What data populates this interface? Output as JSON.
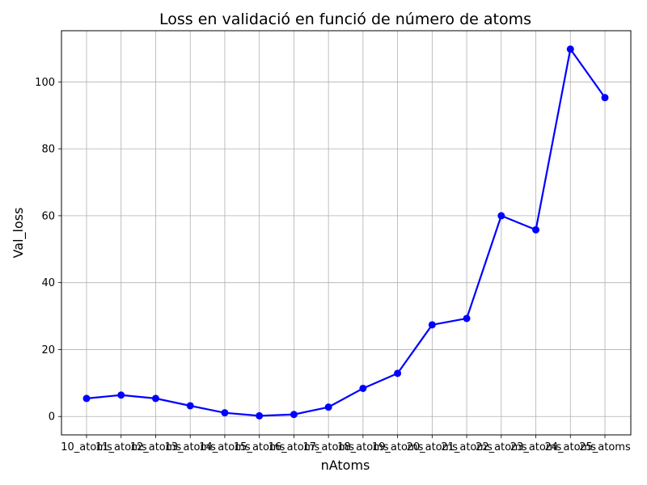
{
  "chart_data": {
    "type": "line",
    "title": "Loss en validació en funció de número de atoms",
    "xlabel": "nAtoms",
    "ylabel": "Val_loss",
    "categories": [
      "10_atoms",
      "11_atoms",
      "12_atoms",
      "13_atoms",
      "14_atoms",
      "15_atoms",
      "16_atoms",
      "17_atoms",
      "18_atoms",
      "19_atoms",
      "20_atoms",
      "21_atoms",
      "22_atoms",
      "23_atoms",
      "24_atoms",
      "25_atoms"
    ],
    "series": [
      {
        "values": [
          5.4,
          6.4,
          5.4,
          3.2,
          1.1,
          0.2,
          0.6,
          2.8,
          8.4,
          12.9,
          27.4,
          29.3,
          60.0,
          55.8,
          109.8,
          95.3
        ]
      }
    ],
    "ylim": [
      -5.5,
      115.3
    ],
    "yticks": [
      0,
      20,
      40,
      60,
      80,
      100
    ],
    "grid": true,
    "color": "#0000ff"
  }
}
